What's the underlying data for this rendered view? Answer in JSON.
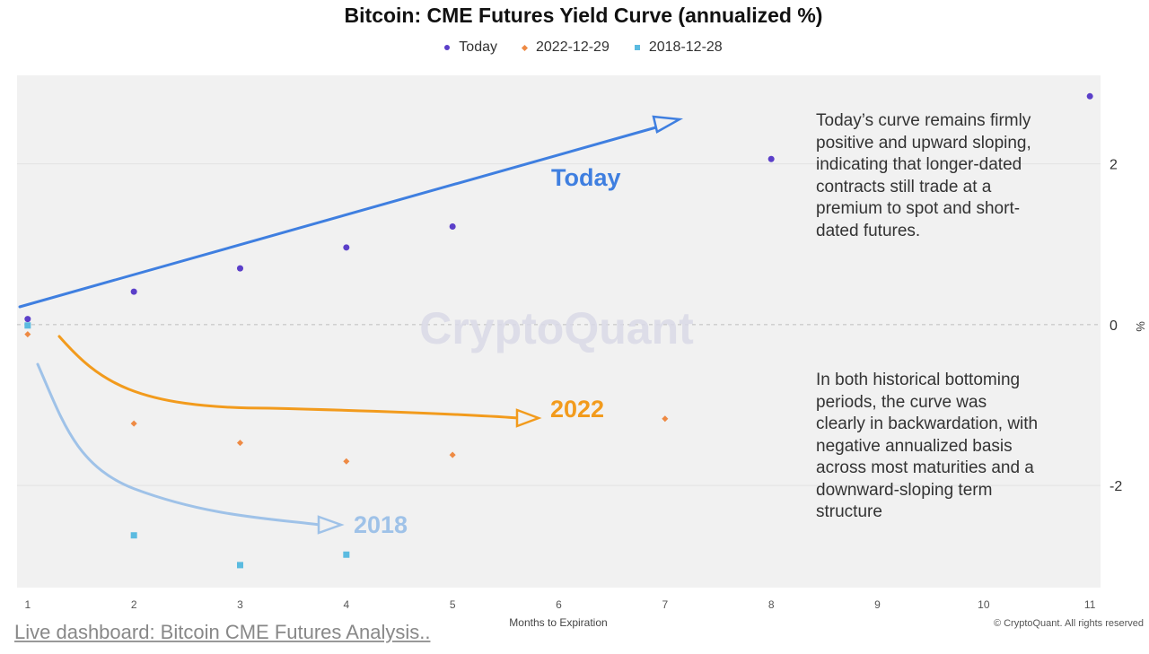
{
  "title": "Bitcoin: CME Futures Yield Curve (annualized %)",
  "footer_link": "Live dashboard: Bitcoin CME Futures Analysis..",
  "copyright": "© CryptoQuant. All rights reserved",
  "watermark": "CryptoQuant",
  "notes": {
    "top": "Today’s curve remains firmly positive and upward sloping, indicating that longer-dated contracts still trade at a premium to spot and short-dated futures.",
    "bottom": "In both historical bottoming periods, the curve was clearly in backwardation, with negative annualized basis across most maturities and a downward-sloping term structure"
  },
  "annotations": [
    {
      "text": "Today",
      "color": "#3f7fe0"
    },
    {
      "text": "2022",
      "color": "#f29b1d"
    },
    {
      "text": "2018",
      "color": "#9fc2e8"
    }
  ],
  "chart_data": {
    "type": "scatter",
    "title": "Bitcoin: CME Futures Yield Curve (annualized %)",
    "xlabel": "Months to Expiration",
    "ylabel": "%",
    "xlim": [
      0.9,
      11.1
    ],
    "ylim": [
      -3.27,
      3.1
    ],
    "x_ticks": [
      1,
      2,
      3,
      4,
      5,
      6,
      7,
      8,
      9,
      10,
      11
    ],
    "y_ticks": [
      2,
      0,
      -2
    ],
    "grid": true,
    "legend_position": "top-center",
    "series": [
      {
        "name": "Today",
        "color": "#5b3fc9",
        "marker": "circle",
        "x": [
          1,
          2,
          3,
          4,
          5,
          8,
          11
        ],
        "y": [
          0.07,
          0.41,
          0.7,
          0.96,
          1.22,
          2.06,
          2.84
        ]
      },
      {
        "name": "2022-12-29",
        "color": "#ee8a44",
        "marker": "diamond",
        "x": [
          1,
          2,
          3,
          4,
          5,
          7
        ],
        "y": [
          -0.12,
          -1.23,
          -1.47,
          -1.7,
          -1.62,
          -1.17
        ]
      },
      {
        "name": "2018-12-28",
        "color": "#5bbbe0",
        "marker": "square",
        "x": [
          1,
          2,
          3,
          4
        ],
        "y": [
          -0.01,
          -2.62,
          -2.99,
          -2.86
        ]
      }
    ]
  }
}
